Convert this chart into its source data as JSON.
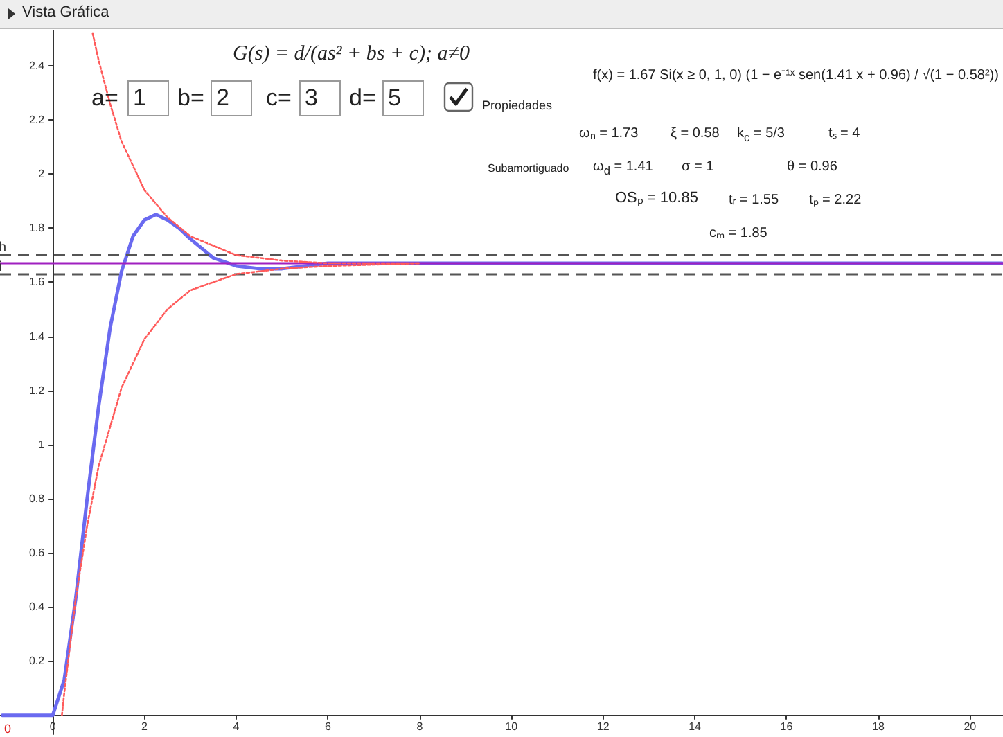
{
  "chart_data": {
    "type": "line",
    "title": "Vista Gráfica",
    "xlim": [
      -1.15,
      20.72
    ],
    "ylim": [
      -0.07,
      2.53
    ],
    "xticks": [
      0,
      2,
      4,
      6,
      8,
      10,
      12,
      14,
      16,
      18,
      20
    ],
    "yticks": [
      0.2,
      0.4,
      0.6,
      0.8,
      1,
      1.2,
      1.4,
      1.6,
      1.8,
      2,
      2.2,
      2.4
    ],
    "grid": false,
    "marker": "none",
    "series": [
      {
        "color": "#6a6af0",
        "line_style": "solid",
        "x": [
          -1.1,
          0,
          0.25,
          0.5,
          0.75,
          1,
          1.25,
          1.5,
          1.75,
          2,
          2.25,
          2.5,
          2.75,
          3,
          3.5,
          4,
          4.5,
          5,
          6,
          7,
          10,
          15,
          20.7
        ],
        "values": [
          0,
          0,
          0.13,
          0.43,
          0.8,
          1.14,
          1.43,
          1.64,
          1.77,
          1.83,
          1.85,
          1.83,
          1.8,
          1.76,
          1.69,
          1.66,
          1.65,
          1.65,
          1.67,
          1.67,
          1.67,
          1.67,
          1.67
        ]
      },
      {
        "color": "#ff5a5a",
        "line_style": "dotted",
        "x": [
          0.87,
          1,
          1.25,
          1.5,
          2,
          2.5,
          3,
          4,
          5,
          6,
          8
        ],
        "values": [
          2.52,
          2.42,
          2.26,
          2.12,
          1.94,
          1.84,
          1.77,
          1.7,
          1.68,
          1.67,
          1.67
        ]
      },
      {
        "color": "#ff5a5a",
        "line_style": "dotted",
        "x": [
          0.2,
          0.25,
          0.5,
          0.75,
          1,
          1.5,
          2,
          2.5,
          3,
          4,
          5,
          6,
          8
        ],
        "values": [
          0,
          0.08,
          0.43,
          0.7,
          0.92,
          1.21,
          1.39,
          1.5,
          1.57,
          1.63,
          1.65,
          1.66,
          1.67
        ]
      }
    ],
    "ref_lines": [
      {
        "axis": "y",
        "value": 1.7,
        "label": "h",
        "color": "#555555",
        "line_style": "dashed"
      },
      {
        "axis": "y",
        "value": 1.63,
        "label": "i",
        "color": "#555555",
        "line_style": "dashed"
      },
      {
        "axis": "y",
        "value": 1.67,
        "label": null,
        "color": "#a020c0",
        "line_style": "solid"
      }
    ],
    "annotations": [
      "G(s) = d/(as² + bs + c); a≠0",
      "a=",
      "1",
      "b=",
      "2",
      "c=",
      "3",
      "d=",
      "5",
      "Propiedades",
      "f(x) = 1.67 Si(x ≥ 0, 1, 0) (1 − e⁻¹ˣ sen(1.41 x + 0.96) / √(1 − 0.58²))",
      "ωₙ = 1.73",
      "ξ = 0.58",
      "k$_{c}$ = 5/3",
      "tₛ = 4",
      "Subamortiguado",
      "ω$_{d}$ = 1.41",
      "σ = 1",
      "θ = 0.96",
      "OSₚ = 10.85",
      "tᵣ = 1.55",
      "tₚ = 2.22",
      "cₘ = 1.85",
      "0"
    ]
  }
}
